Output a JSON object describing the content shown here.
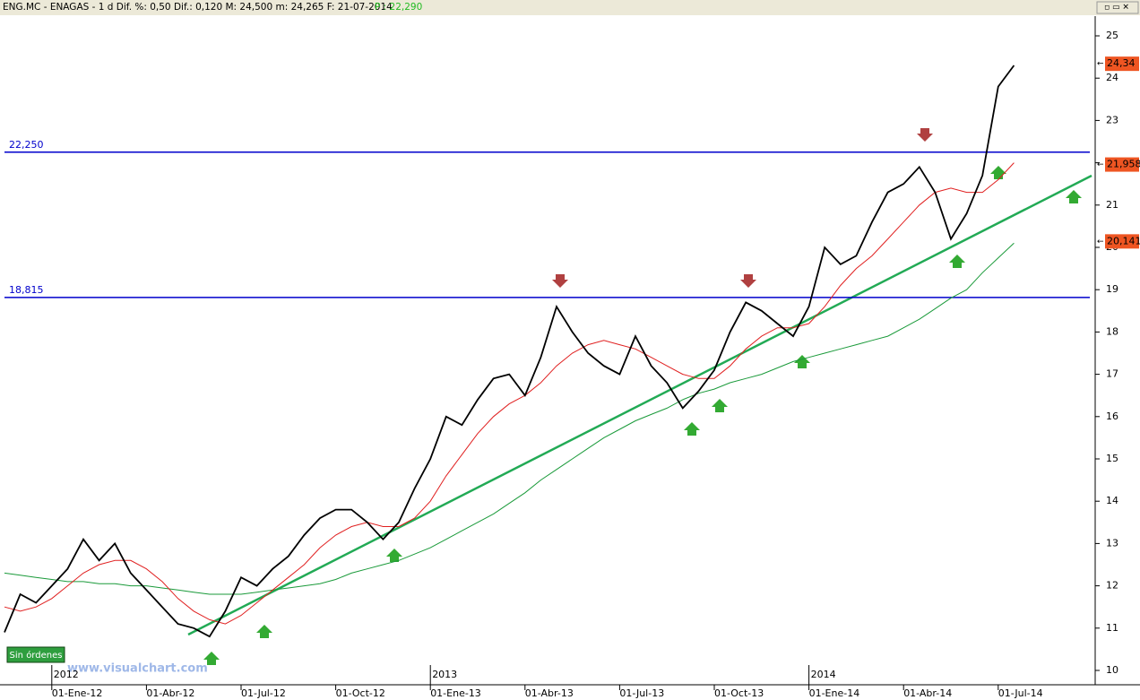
{
  "header": {
    "info": "ENG.MC - ENAGAS - 1 d Dif. %: 0,50 Dif.: 0,120 M: 24,500 m: 24,265 F: 21-07-2014",
    "price": "P : 22,290"
  },
  "button": "Sin órdenes",
  "watermark": "www.visualchart.com",
  "chart_data": {
    "type": "line",
    "categories": [
      null,
      null,
      null,
      "01-Ene-12",
      null,
      null,
      null,
      null,
      null,
      "01-Abr-12",
      null,
      null,
      null,
      null,
      null,
      "01-Jul-12",
      null,
      null,
      null,
      null,
      null,
      "01-Oct-12",
      null,
      null,
      null,
      null,
      null,
      "01-Ene-13",
      null,
      null,
      null,
      null,
      null,
      "01-Abr-13",
      null,
      null,
      null,
      null,
      null,
      "01-Jul-13",
      null,
      null,
      null,
      null,
      null,
      "01-Oct-13",
      null,
      null,
      null,
      null,
      null,
      "01-Ene-14",
      null,
      null,
      null,
      null,
      null,
      "01-Abr-14",
      null,
      null,
      null,
      null,
      null,
      "01-Jul-14",
      null
    ],
    "years": [
      "2012",
      "2013",
      "2014"
    ],
    "series": [
      {
        "color": "#000000",
        "values": [
          10.9,
          11.8,
          11.6,
          12.0,
          12.4,
          13.1,
          12.6,
          13.0,
          12.3,
          11.9,
          11.5,
          11.1,
          11.0,
          10.8,
          11.4,
          12.2,
          12.0,
          12.4,
          12.7,
          13.2,
          13.6,
          13.8,
          13.8,
          13.5,
          13.1,
          13.5,
          14.3,
          15.0,
          16.0,
          15.8,
          16.4,
          16.9,
          17.0,
          16.5,
          17.4,
          18.6,
          18.0,
          17.5,
          17.2,
          17.0,
          17.9,
          17.2,
          16.8,
          16.2,
          16.6,
          17.1,
          18.0,
          18.7,
          18.5,
          18.2,
          17.9,
          18.6,
          20.0,
          19.6,
          19.8,
          20.6,
          21.3,
          21.5,
          21.9,
          21.3,
          20.2,
          20.8,
          21.7,
          23.8,
          24.3
        ]
      },
      {
        "color": "#e02020",
        "values": [
          11.5,
          11.4,
          11.5,
          11.7,
          12.0,
          12.3,
          12.5,
          12.6,
          12.6,
          12.4,
          12.1,
          11.7,
          11.4,
          11.2,
          11.1,
          11.3,
          11.6,
          11.9,
          12.2,
          12.5,
          12.9,
          13.2,
          13.4,
          13.5,
          13.4,
          13.4,
          13.6,
          14.0,
          14.6,
          15.1,
          15.6,
          16.0,
          16.3,
          16.5,
          16.8,
          17.2,
          17.5,
          17.7,
          17.8,
          17.7,
          17.6,
          17.4,
          17.2,
          17.0,
          16.9,
          16.9,
          17.2,
          17.6,
          17.9,
          18.1,
          18.1,
          18.2,
          18.6,
          19.1,
          19.5,
          19.8,
          20.2,
          20.6,
          21.0,
          21.3,
          21.4,
          21.3,
          21.3,
          21.6,
          22.0
        ]
      },
      {
        "color": "#1a9a3a",
        "values": [
          12.3,
          12.25,
          12.2,
          12.15,
          12.1,
          12.1,
          12.05,
          12.05,
          12.0,
          12.0,
          11.95,
          11.9,
          11.85,
          11.8,
          11.8,
          11.8,
          11.85,
          11.9,
          11.95,
          12.0,
          12.05,
          12.15,
          12.3,
          12.4,
          12.5,
          12.6,
          12.75,
          12.9,
          13.1,
          13.3,
          13.5,
          13.7,
          13.95,
          14.2,
          14.5,
          14.75,
          15.0,
          15.25,
          15.5,
          15.7,
          15.9,
          16.05,
          16.2,
          16.4,
          16.55,
          16.65,
          16.8,
          16.9,
          17.0,
          17.15,
          17.3,
          17.4,
          17.5,
          17.6,
          17.7,
          17.8,
          17.9,
          18.1,
          18.3,
          18.55,
          18.8,
          19.0,
          19.4,
          19.75,
          20.1
        ]
      }
    ],
    "ylim": [
      10,
      25
    ],
    "yticks": [
      10,
      11,
      12,
      13,
      14,
      15,
      16,
      17,
      18,
      19,
      20,
      21,
      22,
      23,
      24,
      25
    ],
    "levels": [
      {
        "value": 22.25,
        "label": "22,250"
      },
      {
        "value": 18.815,
        "label": "18,815"
      }
    ],
    "price_tags": [
      {
        "value": 24.34,
        "label": "24,34"
      },
      {
        "value": 21.958,
        "label": "21,958"
      },
      {
        "value": 20.141,
        "label": "20,141"
      }
    ]
  }
}
